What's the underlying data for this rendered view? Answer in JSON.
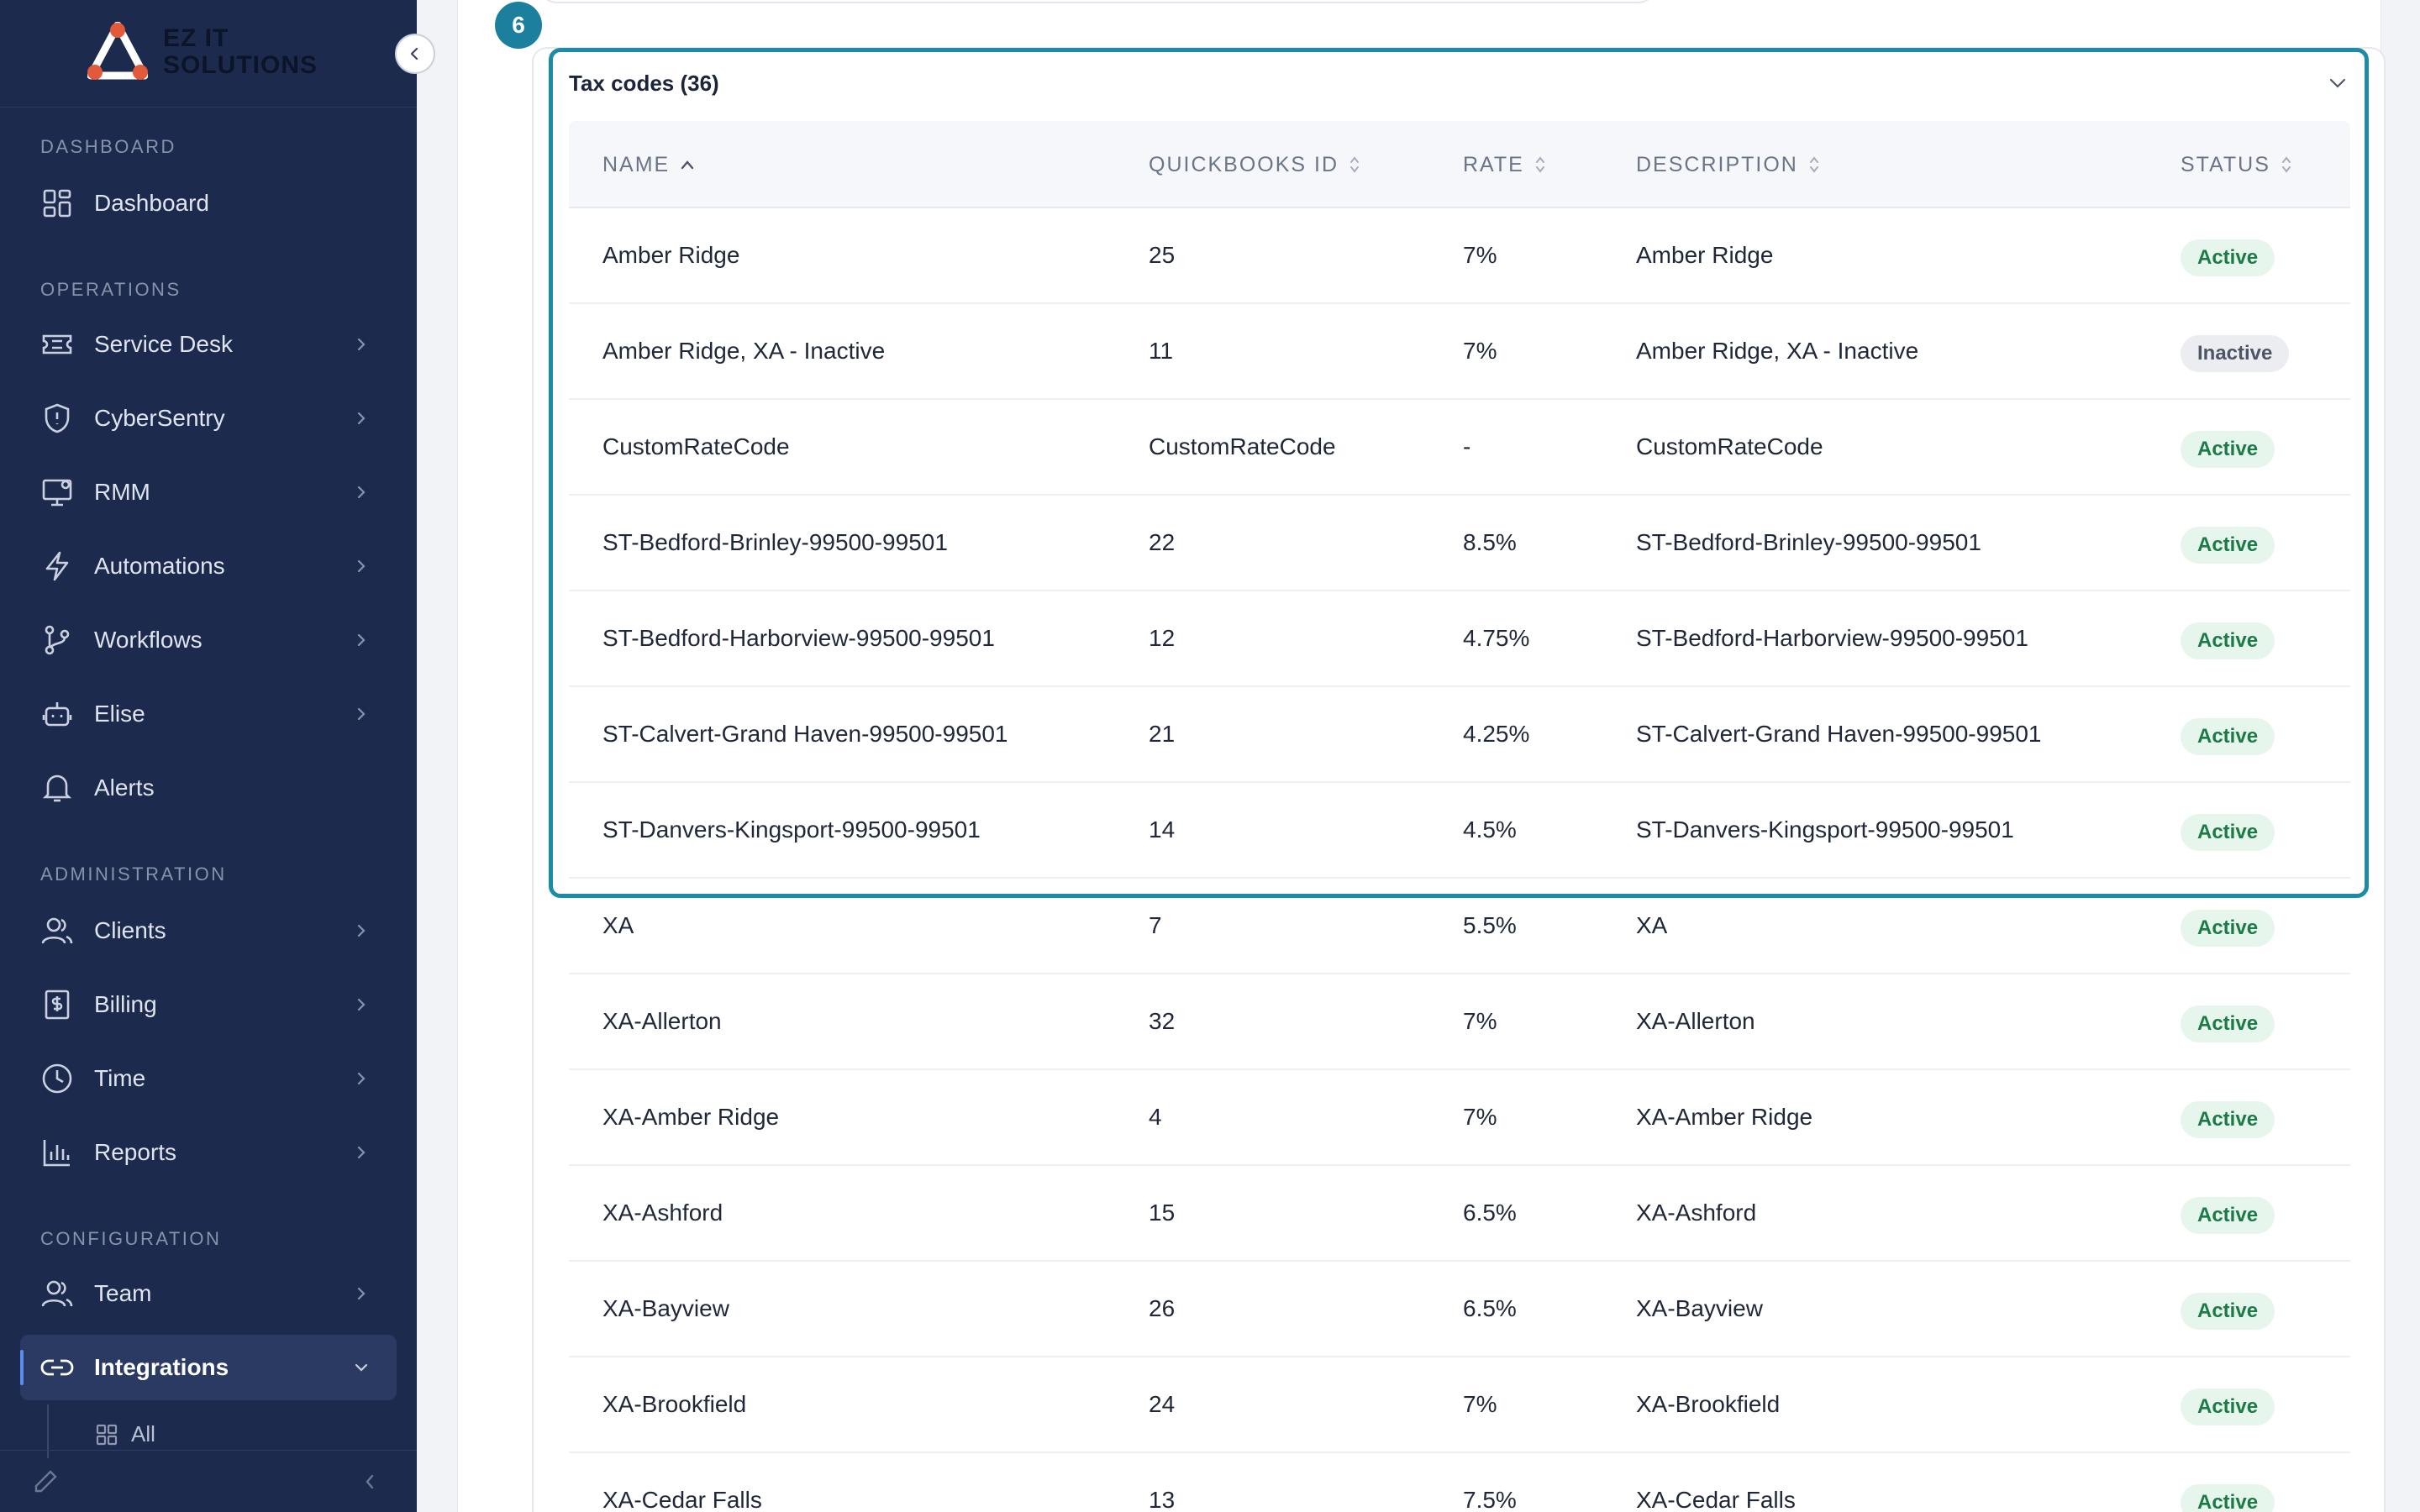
{
  "brand": {
    "line1": "EZ IT",
    "line2": "SOLUTIONS"
  },
  "sidebar": {
    "sections": [
      {
        "title": "DASHBOARD"
      },
      {
        "title": "OPERATIONS"
      },
      {
        "title": "ADMINISTRATION"
      },
      {
        "title": "CONFIGURATION"
      }
    ],
    "items": [
      {
        "label": "Dashboard",
        "icon": "dashboard-icon"
      },
      {
        "label": "Service Desk",
        "icon": "ticket-icon"
      },
      {
        "label": "CyberSentry",
        "icon": "shield-icon"
      },
      {
        "label": "RMM",
        "icon": "monitor-icon"
      },
      {
        "label": "Automations",
        "icon": "lightning-icon"
      },
      {
        "label": "Workflows",
        "icon": "branch-icon"
      },
      {
        "label": "Elise",
        "icon": "robot-icon"
      },
      {
        "label": "Alerts",
        "icon": "bell-icon"
      },
      {
        "label": "Clients",
        "icon": "users-icon"
      },
      {
        "label": "Billing",
        "icon": "invoice-icon"
      },
      {
        "label": "Time",
        "icon": "clock-icon"
      },
      {
        "label": "Reports",
        "icon": "bar-chart-icon"
      },
      {
        "label": "Team",
        "icon": "team-icon"
      },
      {
        "label": "Integrations",
        "icon": "link-icon"
      }
    ],
    "sub_items": [
      {
        "label": "All",
        "icon": "grid-icon"
      }
    ]
  },
  "step_number": "6",
  "card": {
    "title": "Tax codes (36)",
    "columns": [
      "NAME",
      "QUICKBOOKS ID",
      "RATE",
      "DESCRIPTION",
      "STATUS"
    ],
    "rows": [
      {
        "name": "Amber Ridge",
        "qb_id": "25",
        "rate": "7%",
        "description": "Amber Ridge",
        "status": "Active"
      },
      {
        "name": "Amber Ridge, XA - Inactive",
        "qb_id": "11",
        "rate": "7%",
        "description": "Amber Ridge, XA - Inactive",
        "status": "Inactive"
      },
      {
        "name": "CustomRateCode",
        "qb_id": "CustomRateCode",
        "rate": "-",
        "description": "CustomRateCode",
        "status": "Active"
      },
      {
        "name": "ST-Bedford-Brinley-99500-99501",
        "qb_id": "22",
        "rate": "8.5%",
        "description": "ST-Bedford-Brinley-99500-99501",
        "status": "Active"
      },
      {
        "name": "ST-Bedford-Harborview-99500-99501",
        "qb_id": "12",
        "rate": "4.75%",
        "description": "ST-Bedford-Harborview-99500-99501",
        "status": "Active"
      },
      {
        "name": "ST-Calvert-Grand Haven-99500-99501",
        "qb_id": "21",
        "rate": "4.25%",
        "description": "ST-Calvert-Grand Haven-99500-99501",
        "status": "Active"
      },
      {
        "name": "ST-Danvers-Kingsport-99500-99501",
        "qb_id": "14",
        "rate": "4.5%",
        "description": "ST-Danvers-Kingsport-99500-99501",
        "status": "Active"
      },
      {
        "name": "XA",
        "qb_id": "7",
        "rate": "5.5%",
        "description": "XA",
        "status": "Active"
      },
      {
        "name": "XA-Allerton",
        "qb_id": "32",
        "rate": "7%",
        "description": "XA-Allerton",
        "status": "Active"
      },
      {
        "name": "XA-Amber Ridge",
        "qb_id": "4",
        "rate": "7%",
        "description": "XA-Amber Ridge",
        "status": "Active"
      },
      {
        "name": "XA-Ashford",
        "qb_id": "15",
        "rate": "6.5%",
        "description": "XA-Ashford",
        "status": "Active"
      },
      {
        "name": "XA-Bayview",
        "qb_id": "26",
        "rate": "6.5%",
        "description": "XA-Bayview",
        "status": "Active"
      },
      {
        "name": "XA-Brookfield",
        "qb_id": "24",
        "rate": "7%",
        "description": "XA-Brookfield",
        "status": "Active"
      },
      {
        "name": "XA-Cedar Falls",
        "qb_id": "13",
        "rate": "7.5%",
        "description": "XA-Cedar Falls",
        "status": "Active"
      }
    ]
  },
  "colors": {
    "sidebar_bg": "#1c2a4d",
    "highlight": "#1d8aa8",
    "active_badge_bg": "#e6f6ec",
    "active_badge_text": "#1b7a45",
    "inactive_badge_bg": "#ebedf1"
  }
}
